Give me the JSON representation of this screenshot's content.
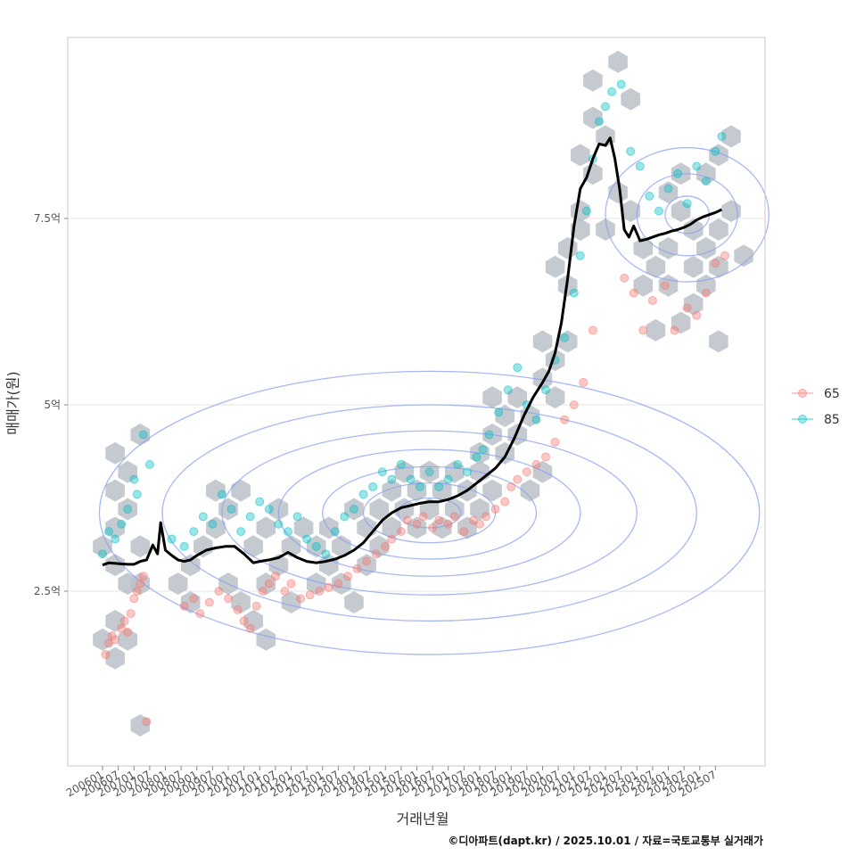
{
  "chart_data": {
    "type": "scatter",
    "title": "",
    "xlabel": "거래년월",
    "ylabel": "매매가(원)",
    "caption": "©디아파트(dapt.kr) / 2025.10.01 / 자료=국토교통부 실거래가",
    "y_unit": "억",
    "ylim": [
      0.2,
      10.0
    ],
    "xlim": [
      2005.6,
      2026.8
    ],
    "y_ticks": [
      {
        "value": 2.5,
        "label": "2.5억"
      },
      {
        "value": 5.0,
        "label": "5억"
      },
      {
        "value": 7.5,
        "label": "7.5억"
      }
    ],
    "x_ticks": [
      "200601",
      "200607",
      "200701",
      "200707",
      "200801",
      "200807",
      "200901",
      "200907",
      "201001",
      "201007",
      "201101",
      "201107",
      "201201",
      "201207",
      "201301",
      "201307",
      "201401",
      "201407",
      "201501",
      "201507",
      "201601",
      "201607",
      "201701",
      "201707",
      "201801",
      "201807",
      "201901",
      "201907",
      "202001",
      "202007",
      "202101",
      "202107",
      "202201",
      "202207",
      "202301",
      "202307",
      "202401",
      "202407",
      "202501",
      "202507"
    ],
    "legend": {
      "position": "right",
      "entries": [
        {
          "name": "65",
          "color": "#F8766D"
        },
        {
          "name": "85",
          "color": "#00BFC4"
        }
      ]
    },
    "colors": {
      "hex": "#b8bec6",
      "contour": "#8aa0f0",
      "trend": "#000000",
      "grid": "#e6e6e6",
      "panel_border": "#c8c8c8"
    },
    "trend_line": {
      "x": [
        2006.0,
        2006.2,
        2006.5,
        2006.8,
        2007.0,
        2007.2,
        2007.4,
        2007.6,
        2007.75,
        2007.85,
        2008.0,
        2008.2,
        2008.4,
        2008.6,
        2008.8,
        2009.0,
        2009.3,
        2009.6,
        2009.9,
        2010.2,
        2010.5,
        2010.8,
        2011.0,
        2011.3,
        2011.6,
        2011.9,
        2012.2,
        2012.5,
        2012.8,
        2013.1,
        2013.4,
        2013.7,
        2014.0,
        2014.3,
        2014.6,
        2014.9,
        2015.2,
        2015.5,
        2015.8,
        2016.1,
        2016.4,
        2016.7,
        2017.0,
        2017.3,
        2017.6,
        2017.9,
        2018.2,
        2018.5,
        2018.8,
        2019.1,
        2019.4,
        2019.7,
        2020.0,
        2020.2,
        2020.4,
        2020.6,
        2020.8,
        2021.0,
        2021.2,
        2021.4,
        2021.6,
        2021.8,
        2022.0,
        2022.15,
        2022.3,
        2022.45,
        2022.6,
        2022.75,
        2022.9,
        2023.1,
        2023.3,
        2023.5,
        2023.7,
        2023.9,
        2024.1,
        2024.3,
        2024.5,
        2024.7,
        2024.9,
        2025.1,
        2025.3,
        2025.5,
        2025.7
      ],
      "y": [
        2.85,
        2.88,
        2.87,
        2.86,
        2.86,
        2.9,
        2.92,
        3.12,
        3.0,
        3.42,
        3.05,
        2.98,
        2.92,
        2.9,
        2.92,
        2.98,
        3.05,
        3.08,
        3.1,
        3.1,
        3.0,
        2.88,
        2.9,
        2.92,
        2.95,
        3.02,
        2.95,
        2.9,
        2.88,
        2.9,
        2.93,
        2.98,
        3.05,
        3.15,
        3.3,
        3.45,
        3.55,
        3.62,
        3.65,
        3.68,
        3.7,
        3.7,
        3.73,
        3.78,
        3.85,
        3.95,
        4.05,
        4.15,
        4.3,
        4.55,
        4.85,
        5.1,
        5.3,
        5.45,
        5.7,
        6.1,
        6.7,
        7.4,
        7.9,
        8.05,
        8.3,
        8.5,
        8.48,
        8.58,
        8.3,
        7.9,
        7.35,
        7.25,
        7.4,
        7.2,
        7.22,
        7.25,
        7.28,
        7.3,
        7.33,
        7.35,
        7.38,
        7.42,
        7.48,
        7.52,
        7.55,
        7.58,
        7.62
      ]
    },
    "series": [
      {
        "name": "65",
        "x": [
          2006.1,
          2006.2,
          2006.3,
          2006.4,
          2006.6,
          2006.7,
          2006.8,
          2006.9,
          2007.0,
          2007.1,
          2007.2,
          2007.3,
          2008.6,
          2008.9,
          2009.1,
          2009.4,
          2009.7,
          2010.0,
          2010.3,
          2010.5,
          2010.7,
          2010.9,
          2011.1,
          2011.3,
          2011.5,
          2011.8,
          2012.0,
          2012.3,
          2012.6,
          2012.9,
          2013.2,
          2013.5,
          2013.8,
          2014.1,
          2014.4,
          2014.7,
          2015.0,
          2015.2,
          2015.5,
          2015.7,
          2016.0,
          2016.2,
          2016.5,
          2016.7,
          2017.0,
          2017.2,
          2017.5,
          2017.8,
          2018.0,
          2018.2,
          2018.5,
          2018.8,
          2019.0,
          2019.2,
          2019.5,
          2019.8,
          2020.1,
          2020.4,
          2020.7,
          2021.0,
          2021.3,
          2021.6,
          2022.6,
          2022.9,
          2023.2,
          2023.5,
          2023.9,
          2024.2,
          2024.6,
          2024.9,
          2025.2,
          2025.5,
          2025.8,
          2007.4
        ],
        "y": [
          1.65,
          1.8,
          1.9,
          1.85,
          2.0,
          2.1,
          1.95,
          2.2,
          2.4,
          2.5,
          2.6,
          2.7,
          2.3,
          2.4,
          2.2,
          2.35,
          2.5,
          2.4,
          2.25,
          2.1,
          2.0,
          2.3,
          2.5,
          2.6,
          2.7,
          2.5,
          2.6,
          2.4,
          2.45,
          2.5,
          2.55,
          2.6,
          2.7,
          2.8,
          2.9,
          3.0,
          3.1,
          3.2,
          3.3,
          3.45,
          3.4,
          3.5,
          3.35,
          3.45,
          3.4,
          3.5,
          3.3,
          3.45,
          3.4,
          3.5,
          3.6,
          3.7,
          3.9,
          4.0,
          4.1,
          4.2,
          4.3,
          4.5,
          4.8,
          5.0,
          5.3,
          6.0,
          6.7,
          6.5,
          6.0,
          6.4,
          6.6,
          6.0,
          6.3,
          6.2,
          6.5,
          6.9,
          7.0,
          0.75
        ]
      },
      {
        "name": "85",
        "x": [
          2006.0,
          2006.2,
          2006.4,
          2006.6,
          2006.8,
          2007.0,
          2007.1,
          2007.3,
          2007.5,
          2008.2,
          2008.6,
          2008.9,
          2009.2,
          2009.5,
          2009.8,
          2010.1,
          2010.4,
          2010.7,
          2011.0,
          2011.3,
          2011.6,
          2011.9,
          2012.2,
          2012.5,
          2012.8,
          2013.1,
          2013.4,
          2013.7,
          2014.0,
          2014.3,
          2014.6,
          2014.9,
          2015.2,
          2015.5,
          2015.8,
          2016.1,
          2016.4,
          2016.7,
          2017.0,
          2017.3,
          2017.6,
          2017.9,
          2018.1,
          2018.3,
          2018.6,
          2018.9,
          2019.2,
          2019.5,
          2019.8,
          2020.1,
          2020.4,
          2020.7,
          2021.0,
          2021.2,
          2021.4,
          2021.6,
          2021.8,
          2022.0,
          2022.2,
          2022.5,
          2022.8,
          2023.1,
          2023.4,
          2023.7,
          2024.0,
          2024.3,
          2024.6,
          2024.9,
          2025.2,
          2025.5,
          2025.7
        ],
        "y": [
          3.0,
          3.3,
          3.2,
          3.4,
          3.6,
          4.0,
          3.8,
          4.6,
          4.2,
          3.2,
          3.1,
          3.3,
          3.5,
          3.4,
          3.8,
          3.6,
          3.3,
          3.5,
          3.7,
          3.6,
          3.4,
          3.3,
          3.5,
          3.2,
          3.1,
          3.0,
          3.3,
          3.5,
          3.6,
          3.8,
          3.9,
          4.1,
          4.0,
          4.2,
          4.0,
          3.9,
          4.1,
          3.9,
          4.0,
          4.2,
          4.1,
          4.3,
          4.4,
          4.6,
          4.9,
          5.2,
          5.5,
          5.0,
          4.8,
          5.2,
          5.6,
          5.9,
          6.5,
          7.0,
          7.6,
          8.3,
          8.8,
          9.0,
          9.2,
          9.3,
          8.4,
          8.2,
          7.8,
          7.6,
          7.9,
          8.1,
          7.7,
          8.2,
          8.0,
          8.4,
          8.6
        ]
      }
    ],
    "hexbins": [
      [
        2006.0,
        1.85
      ],
      [
        2006.4,
        1.6
      ],
      [
        2006.4,
        2.1
      ],
      [
        2006.8,
        1.85
      ],
      [
        2006.8,
        2.6
      ],
      [
        2006.4,
        2.85
      ],
      [
        2006.0,
        3.1
      ],
      [
        2006.4,
        3.35
      ],
      [
        2006.8,
        3.6
      ],
      [
        2006.4,
        3.85
      ],
      [
        2006.8,
        4.1
      ],
      [
        2006.4,
        4.35
      ],
      [
        2007.2,
        4.6
      ],
      [
        2007.2,
        0.7
      ],
      [
        2007.2,
        3.1
      ],
      [
        2007.2,
        2.6
      ],
      [
        2008.4,
        2.6
      ],
      [
        2008.8,
        2.35
      ],
      [
        2008.8,
        2.85
      ],
      [
        2009.2,
        3.1
      ],
      [
        2009.6,
        3.35
      ],
      [
        2009.6,
        3.85
      ],
      [
        2010.0,
        3.6
      ],
      [
        2010.0,
        2.6
      ],
      [
        2010.4,
        2.35
      ],
      [
        2010.4,
        3.85
      ],
      [
        2010.8,
        2.1
      ],
      [
        2010.8,
        3.1
      ],
      [
        2011.2,
        1.85
      ],
      [
        2011.2,
        2.6
      ],
      [
        2011.2,
        3.35
      ],
      [
        2011.6,
        3.6
      ],
      [
        2011.6,
        2.85
      ],
      [
        2012.0,
        3.1
      ],
      [
        2012.0,
        2.35
      ],
      [
        2012.4,
        3.35
      ],
      [
        2012.8,
        2.6
      ],
      [
        2012.8,
        3.1
      ],
      [
        2013.2,
        2.85
      ],
      [
        2013.2,
        3.35
      ],
      [
        2013.6,
        2.6
      ],
      [
        2013.6,
        3.1
      ],
      [
        2014.0,
        2.35
      ],
      [
        2014.0,
        3.6
      ],
      [
        2014.4,
        2.85
      ],
      [
        2014.4,
        3.35
      ],
      [
        2014.8,
        3.1
      ],
      [
        2014.8,
        3.6
      ],
      [
        2015.2,
        3.85
      ],
      [
        2015.2,
        3.35
      ],
      [
        2015.6,
        3.6
      ],
      [
        2015.6,
        4.1
      ],
      [
        2016.0,
        3.85
      ],
      [
        2016.0,
        3.35
      ],
      [
        2016.4,
        3.6
      ],
      [
        2016.4,
        4.1
      ],
      [
        2016.8,
        3.85
      ],
      [
        2016.8,
        3.35
      ],
      [
        2017.2,
        3.6
      ],
      [
        2017.2,
        4.1
      ],
      [
        2017.6,
        3.85
      ],
      [
        2017.6,
        3.35
      ],
      [
        2018.0,
        3.6
      ],
      [
        2018.0,
        4.1
      ],
      [
        2018.0,
        4.35
      ],
      [
        2018.4,
        3.85
      ],
      [
        2018.4,
        4.6
      ],
      [
        2018.4,
        5.1
      ],
      [
        2018.8,
        4.85
      ],
      [
        2018.8,
        4.35
      ],
      [
        2019.2,
        4.6
      ],
      [
        2019.2,
        5.1
      ],
      [
        2019.6,
        3.85
      ],
      [
        2019.6,
        4.85
      ],
      [
        2020.0,
        4.1
      ],
      [
        2020.0,
        5.35
      ],
      [
        2020.0,
        5.85
      ],
      [
        2020.4,
        5.1
      ],
      [
        2020.4,
        5.6
      ],
      [
        2020.4,
        6.85
      ],
      [
        2020.8,
        6.6
      ],
      [
        2020.8,
        7.1
      ],
      [
        2020.8,
        5.85
      ],
      [
        2021.2,
        7.35
      ],
      [
        2021.2,
        7.6
      ],
      [
        2021.2,
        8.35
      ],
      [
        2021.6,
        8.1
      ],
      [
        2021.6,
        8.85
      ],
      [
        2021.6,
        9.35
      ],
      [
        2022.0,
        8.6
      ],
      [
        2022.0,
        7.35
      ],
      [
        2022.4,
        9.6
      ],
      [
        2022.4,
        7.85
      ],
      [
        2022.8,
        9.1
      ],
      [
        2022.8,
        7.6
      ],
      [
        2023.2,
        6.6
      ],
      [
        2023.2,
        7.1
      ],
      [
        2023.6,
        6.0
      ],
      [
        2023.6,
        6.85
      ],
      [
        2024.0,
        7.1
      ],
      [
        2024.0,
        6.6
      ],
      [
        2024.0,
        7.85
      ],
      [
        2024.4,
        7.6
      ],
      [
        2024.4,
        8.1
      ],
      [
        2024.8,
        6.35
      ],
      [
        2024.8,
        6.85
      ],
      [
        2024.8,
        7.35
      ],
      [
        2025.2,
        6.6
      ],
      [
        2025.2,
        7.1
      ],
      [
        2025.2,
        8.1
      ],
      [
        2025.6,
        5.85
      ],
      [
        2025.6,
        7.35
      ],
      [
        2025.6,
        8.35
      ],
      [
        2026.0,
        7.6
      ],
      [
        2026.0,
        8.6
      ],
      [
        2026.4,
        7.0
      ],
      [
        2025.6,
        6.85
      ],
      [
        2024.4,
        6.1
      ]
    ],
    "contours": [
      {
        "cx": 2016.4,
        "cy": 3.55,
        "rx": 10.5,
        "ry": 1.9
      },
      {
        "cx": 2016.4,
        "cy": 3.55,
        "rx": 8.5,
        "ry": 1.45
      },
      {
        "cx": 2016.4,
        "cy": 3.55,
        "rx": 6.6,
        "ry": 1.1
      },
      {
        "cx": 2016.4,
        "cy": 3.55,
        "rx": 4.8,
        "ry": 0.85
      },
      {
        "cx": 2016.4,
        "cy": 3.55,
        "rx": 3.4,
        "ry": 0.62
      },
      {
        "cx": 2016.4,
        "cy": 3.55,
        "rx": 2.1,
        "ry": 0.4
      },
      {
        "cx": 2016.4,
        "cy": 3.55,
        "rx": 1.0,
        "ry": 0.2
      },
      {
        "cx": 2024.6,
        "cy": 7.55,
        "rx": 2.6,
        "ry": 0.9
      },
      {
        "cx": 2024.6,
        "cy": 7.55,
        "rx": 1.6,
        "ry": 0.55
      },
      {
        "cx": 2024.6,
        "cy": 7.55,
        "rx": 0.7,
        "ry": 0.25
      }
    ]
  }
}
